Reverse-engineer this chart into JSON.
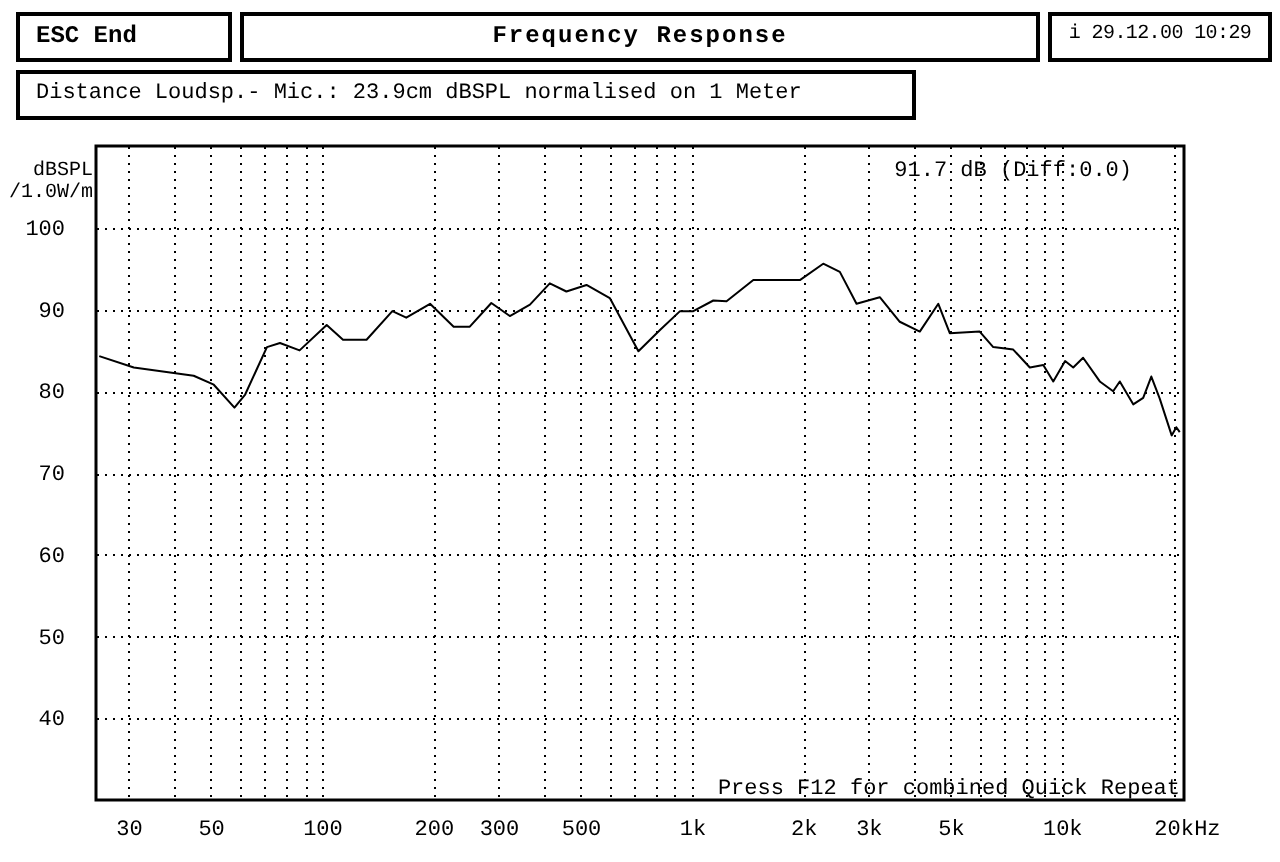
{
  "chart_data": {
    "type": "line",
    "title": "Frequency Response",
    "subtitle": "Distance Loudsp.- Mic.: 23.9cm dBSPL normalised on 1 Meter",
    "ylabel": "dBSPL /1.0W/m",
    "annotations": [
      "ESC End",
      "i 29.12.00 10:29",
      "91.7 dB (Diff:0.0)",
      "Press F12 for combined Quick Repeat"
    ],
    "xlabel": "Hz",
    "log": "x",
    "grid": true,
    "line_style": "solid",
    "xlim": [
      24.5,
      21400
    ],
    "ylim": [
      30,
      110
    ],
    "xticks": [
      {
        "value": 30,
        "label": "30"
      },
      {
        "value": 40,
        "label": null
      },
      {
        "value": 50,
        "label": "50"
      },
      {
        "value": 60,
        "label": null
      },
      {
        "value": 70,
        "label": null
      },
      {
        "value": 80,
        "label": null
      },
      {
        "value": 90,
        "label": null
      },
      {
        "value": 100,
        "label": "100"
      },
      {
        "value": 200,
        "label": "200"
      },
      {
        "value": 300,
        "label": "300"
      },
      {
        "value": 400,
        "label": null
      },
      {
        "value": 500,
        "label": "500"
      },
      {
        "value": 600,
        "label": null
      },
      {
        "value": 700,
        "label": null
      },
      {
        "value": 800,
        "label": null
      },
      {
        "value": 900,
        "label": null
      },
      {
        "value": 1000,
        "label": "1k"
      },
      {
        "value": 2000,
        "label": "2k"
      },
      {
        "value": 3000,
        "label": "3k"
      },
      {
        "value": 4000,
        "label": null
      },
      {
        "value": 5000,
        "label": "5k"
      },
      {
        "value": 6000,
        "label": null
      },
      {
        "value": 7000,
        "label": null
      },
      {
        "value": 8000,
        "label": null
      },
      {
        "value": 9000,
        "label": null
      },
      {
        "value": 10000,
        "label": "10k"
      },
      {
        "value": 20000,
        "label": "20k"
      }
    ],
    "yticks": [
      40,
      50,
      60,
      70,
      80,
      90,
      100
    ],
    "x": [
      25,
      31,
      45,
      51,
      58,
      62,
      71,
      77,
      87,
      103,
      114,
      132,
      155,
      169,
      196,
      227,
      251,
      287,
      322,
      365,
      413,
      458,
      519,
      600,
      717,
      820,
      929,
      1009,
      1143,
      1241,
      1466,
      1959,
      2265,
      2512,
      2787,
      3221,
      3648,
      4132,
      4637,
      4980,
      6000,
      6527,
      7391,
      8197,
      8913,
      9484,
      10210,
      10740,
      11420,
      12670,
      13770,
      14350,
      15600,
      16600,
      17460,
      18400,
      19820,
      20400,
      20840
    ],
    "series": [
      {
        "color": "#000000",
        "values": [
          84.3,
          82.9,
          81.9,
          80.8,
          78.0,
          79.6,
          85.4,
          85.9,
          85.0,
          88.1,
          86.3,
          86.3,
          89.8,
          89.0,
          90.7,
          87.9,
          87.9,
          90.8,
          89.2,
          90.6,
          93.2,
          92.2,
          93.0,
          91.4,
          84.9,
          87.5,
          89.8,
          89.8,
          91.1,
          91.0,
          93.6,
          93.6,
          95.6,
          94.6,
          90.7,
          91.5,
          88.5,
          87.3,
          90.7,
          87.1,
          87.3,
          85.4,
          85.1,
          82.9,
          83.2,
          81.2,
          83.7,
          82.9,
          84.1,
          81.2,
          80.0,
          81.2,
          78.4,
          79.2,
          81.8,
          79.1,
          74.6,
          75.6,
          75.0
        ]
      }
    ]
  }
}
